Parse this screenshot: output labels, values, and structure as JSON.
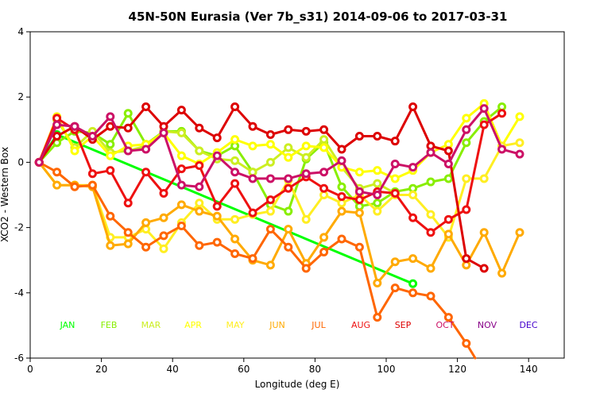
{
  "chart_data": {
    "type": "line",
    "title": "45N-50N Eurasia (Ver 7b_s31)   2014-09-06 to 2017-03-31",
    "xlabel": "Longitude (deg E)",
    "ylabel": "XCO2 - Western Box",
    "xlim": [
      0,
      150
    ],
    "ylim": [
      -6,
      4
    ],
    "xticks": [
      "0",
      "20",
      "40",
      "60",
      "80",
      "100",
      "120",
      "140"
    ],
    "yticks": [
      "-6",
      "-4",
      "-2",
      "0",
      "2",
      "4"
    ],
    "legend_position": "bottom",
    "series": [
      {
        "name": "JAN",
        "color": "#00ff00",
        "x": [
          2.5,
          7.5,
          107.5
        ],
        "y": [
          0.0,
          0.85,
          -3.72
        ]
      },
      {
        "name": "FEB",
        "color": "#88ee00",
        "x": [
          2.5,
          7.5,
          12.5,
          17.5,
          22.5,
          27.5,
          32.5,
          37.5,
          42.5,
          47.5,
          52.5,
          57.5,
          62.5,
          67.5,
          72.5,
          77.5,
          82.5,
          87.5,
          92.5,
          97.5,
          102.5,
          107.5,
          112.5,
          117.5,
          122.5,
          127.5,
          132.5
        ],
        "y": [
          0.0,
          0.6,
          0.95,
          0.9,
          0.55,
          1.5,
          0.55,
          0.95,
          0.95,
          0.35,
          0.2,
          0.5,
          -0.3,
          -1.3,
          -1.5,
          0.1,
          0.6,
          -0.75,
          -1.35,
          -1.25,
          -0.9,
          -0.8,
          -0.6,
          -0.5,
          0.6,
          1.25,
          1.7
        ]
      },
      {
        "name": "MAR",
        "color": "#ccee22",
        "x": [
          2.5,
          7.5,
          12.5,
          17.5,
          22.5,
          27.5,
          32.5,
          37.5,
          42.5,
          47.5,
          52.5,
          57.5,
          62.5,
          67.5,
          72.5,
          77.5,
          82.5,
          87.5,
          92.5,
          97.5,
          102.5
        ],
        "y": [
          0.0,
          1.3,
          0.45,
          0.95,
          0.3,
          0.35,
          0.5,
          0.95,
          0.9,
          0.35,
          0.1,
          0.05,
          -0.3,
          0.0,
          0.45,
          0.15,
          0.7,
          -0.15,
          -0.8,
          -0.65,
          -0.95
        ]
      },
      {
        "name": "APR",
        "color": "#ffff00",
        "x": [
          2.5,
          7.5,
          12.5,
          17.5,
          22.5,
          27.5,
          32.5,
          37.5,
          42.5,
          47.5,
          52.5,
          57.5,
          62.5,
          67.5,
          72.5,
          77.5,
          82.5,
          87.5,
          92.5,
          97.5,
          102.5,
          107.5,
          112.5,
          117.5,
          122.5,
          127.5,
          132.5,
          137.5
        ],
        "y": [
          0.0,
          1.4,
          0.35,
          0.8,
          0.2,
          0.5,
          0.55,
          0.9,
          0.2,
          -0.05,
          0.3,
          0.7,
          0.5,
          0.55,
          0.15,
          0.5,
          0.45,
          -0.15,
          -0.3,
          -0.25,
          -0.5,
          -0.25,
          0.3,
          0.55,
          1.35,
          1.8,
          0.5,
          1.4
        ]
      },
      {
        "name": "MAY",
        "color": "#ffee22",
        "x": [
          2.5,
          7.5,
          12.5,
          17.5,
          22.5,
          27.5,
          32.5,
          37.5,
          42.5,
          47.5,
          52.5,
          57.5,
          62.5,
          67.5,
          72.5,
          77.5,
          82.5,
          87.5,
          92.5,
          97.5,
          102.5,
          107.5,
          112.5,
          117.5,
          122.5,
          127.5,
          132.5,
          137.5
        ],
        "y": [
          0.0,
          -0.7,
          -0.7,
          -0.7,
          -2.3,
          -2.3,
          -2.05,
          -2.65,
          -1.85,
          -1.25,
          -1.75,
          -1.75,
          -1.6,
          -1.5,
          -0.55,
          -1.75,
          -1.0,
          -1.25,
          -1.0,
          -1.5,
          -1.0,
          -1.0,
          -1.6,
          -2.3,
          -0.5,
          -0.5,
          0.5,
          0.6
        ]
      },
      {
        "name": "JUN",
        "color": "#ffaa00",
        "x": [
          2.5,
          7.5,
          12.5,
          17.5,
          22.5,
          27.5,
          32.5,
          37.5,
          42.5,
          47.5,
          52.5,
          57.5,
          62.5,
          67.5,
          72.5,
          77.5,
          82.5,
          87.5,
          92.5,
          97.5,
          102.5,
          107.5,
          112.5,
          117.5,
          122.5,
          127.5,
          132.5,
          137.5
        ],
        "y": [
          0.0,
          -0.7,
          -0.7,
          -0.75,
          -2.55,
          -2.5,
          -1.85,
          -1.7,
          -1.3,
          -1.5,
          -1.65,
          -2.35,
          -3.0,
          -3.15,
          -2.05,
          -3.1,
          -2.3,
          -1.5,
          -1.55,
          -3.7,
          -3.05,
          -2.95,
          -3.25,
          -2.2,
          -3.15,
          -2.15,
          -3.4,
          -2.15
        ]
      },
      {
        "name": "JUL",
        "color": "#ff6600",
        "x": [
          2.5,
          7.5,
          12.5,
          17.5,
          22.5,
          27.5,
          32.5,
          37.5,
          42.5,
          47.5,
          52.5,
          57.5,
          62.5,
          67.5,
          72.5,
          77.5,
          82.5,
          87.5,
          92.5,
          97.5,
          102.5,
          107.5,
          112.5,
          117.5,
          122.5,
          125.0
        ],
        "y": [
          0.0,
          -0.3,
          -0.75,
          -0.7,
          -1.65,
          -2.15,
          -2.6,
          -2.25,
          -1.95,
          -2.55,
          -2.45,
          -2.8,
          -2.95,
          -2.05,
          -2.6,
          -3.25,
          -2.75,
          -2.35,
          -2.6,
          -4.75,
          -3.85,
          -4.0,
          -4.1,
          -4.75,
          -5.55,
          -6.0
        ]
      },
      {
        "name": "AUG",
        "color": "#ee1111",
        "x": [
          2.5,
          7.5,
          12.5,
          17.5,
          22.5,
          27.5,
          32.5,
          37.5,
          42.5,
          47.5,
          52.5,
          57.5,
          62.5,
          67.5,
          72.5,
          77.5,
          82.5,
          87.5,
          92.5,
          97.5,
          102.5,
          107.5,
          112.5,
          117.5,
          122.5,
          127.5,
          132.5
        ],
        "y": [
          0.0,
          1.35,
          1.0,
          -0.35,
          -0.25,
          -1.25,
          -0.3,
          -0.95,
          -0.2,
          -0.1,
          -1.35,
          -0.65,
          -1.55,
          -1.15,
          -0.8,
          -0.45,
          -0.8,
          -1.05,
          -1.15,
          -0.9,
          -0.95,
          -1.7,
          -2.15,
          -1.75,
          -1.45,
          1.15,
          1.5
        ]
      },
      {
        "name": "SEP",
        "color": "#dd0000",
        "x": [
          2.5,
          7.5,
          12.5,
          17.5,
          22.5,
          27.5,
          32.5,
          37.5,
          42.5,
          47.5,
          52.5,
          57.5,
          62.5,
          67.5,
          72.5,
          77.5,
          82.5,
          87.5,
          92.5,
          97.5,
          102.5,
          107.5,
          112.5,
          117.5,
          122.5,
          127.5
        ],
        "y": [
          0.0,
          0.8,
          1.1,
          0.7,
          1.1,
          1.05,
          1.7,
          1.1,
          1.6,
          1.05,
          0.75,
          1.7,
          1.1,
          0.85,
          1.0,
          0.95,
          1.0,
          0.4,
          0.8,
          0.8,
          0.65,
          1.7,
          0.5,
          0.35,
          -2.95,
          -3.25
        ]
      },
      {
        "name": "OCT",
        "color": "#cc1166",
        "x": [
          2.5,
          7.5,
          12.5,
          17.5,
          22.5,
          27.5,
          32.5,
          37.5,
          42.5,
          47.5,
          52.5,
          57.5,
          62.5,
          67.5,
          72.5,
          77.5,
          82.5,
          87.5,
          92.5,
          97.5,
          102.5,
          107.5,
          112.5,
          117.5,
          122.5,
          127.5,
          132.5,
          137.5
        ],
        "y": [
          0.0,
          1.15,
          1.1,
          0.8,
          1.4,
          0.35,
          0.4,
          0.9,
          -0.7,
          -0.75,
          0.2,
          -0.3,
          -0.5,
          -0.5,
          -0.5,
          -0.35,
          -0.3,
          0.05,
          -0.9,
          -1.0,
          -0.05,
          -0.15,
          0.3,
          -0.05,
          1.0,
          1.65,
          0.4,
          0.25
        ]
      },
      {
        "name": "NOV",
        "color": "#880088",
        "x": [],
        "y": []
      },
      {
        "name": "DEC",
        "color": "#4400cc",
        "x": [],
        "y": []
      }
    ]
  }
}
